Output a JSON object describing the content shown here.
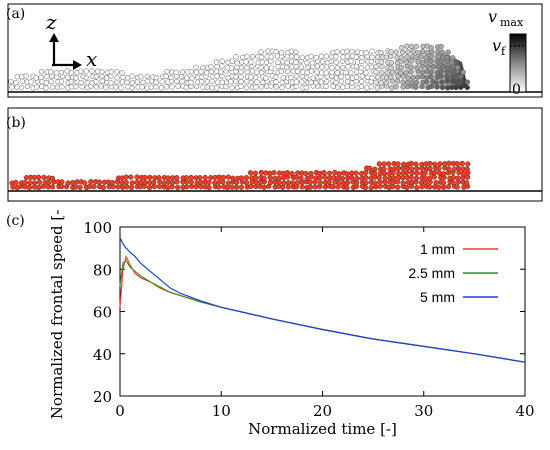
{
  "panels": {
    "a": {
      "label": "(a)",
      "axis_z": "z",
      "axis_x": "x",
      "colorbar": {
        "max": "v",
        "max_sub": "max",
        "mid": "v",
        "mid_sub": "f",
        "min": "0"
      }
    },
    "b": {
      "label": "(b)"
    },
    "c": {
      "label": "(c)"
    }
  },
  "colors": {
    "particle_red": "#e8412a",
    "series_1mm": "#e8412a",
    "series_2_5mm": "#3f8b2a",
    "series_5mm": "#1f3fd6"
  },
  "chart_data": {
    "type": "line",
    "xlabel": "Normalized time [-]",
    "ylabel": "Normalized frontal speed [-]",
    "xlim": [
      0,
      40
    ],
    "ylim": [
      20,
      100
    ],
    "xticks": [
      "0",
      "10",
      "20",
      "30",
      "40"
    ],
    "yticks": [
      "20",
      "40",
      "60",
      "80",
      "100"
    ],
    "grid": false,
    "legend": "top-right",
    "series": [
      {
        "name": "1 mm",
        "x": [
          0,
          0.3,
          0.6,
          1,
          1.5,
          2,
          3,
          4,
          5,
          6,
          8,
          10,
          15,
          20,
          25,
          30,
          35,
          40
        ],
        "y": [
          62,
          80,
          86,
          82,
          78,
          76,
          74,
          71,
          69,
          67.5,
          64.5,
          62,
          56.5,
          51.5,
          47,
          43.5,
          40,
          36
        ]
      },
      {
        "name": "2.5 mm",
        "x": [
          0,
          0.3,
          0.6,
          1,
          1.5,
          2,
          3,
          4,
          5,
          6,
          8,
          10,
          15,
          20,
          25,
          30,
          35,
          40
        ],
        "y": [
          72,
          83,
          84,
          81,
          79,
          77,
          74,
          71.5,
          69,
          67.5,
          64.5,
          62,
          56.5,
          51.5,
          47,
          43.5,
          40,
          36
        ]
      },
      {
        "name": "5 mm",
        "x": [
          0,
          0.3,
          0.6,
          1,
          1.5,
          2,
          3,
          4,
          5,
          6,
          8,
          10,
          15,
          20,
          25,
          30,
          35,
          40
        ],
        "y": [
          95,
          92,
          90,
          88,
          86,
          83,
          79,
          75,
          71,
          68.5,
          65,
          62,
          56.5,
          51.5,
          47,
          43.5,
          40,
          36
        ]
      }
    ]
  }
}
